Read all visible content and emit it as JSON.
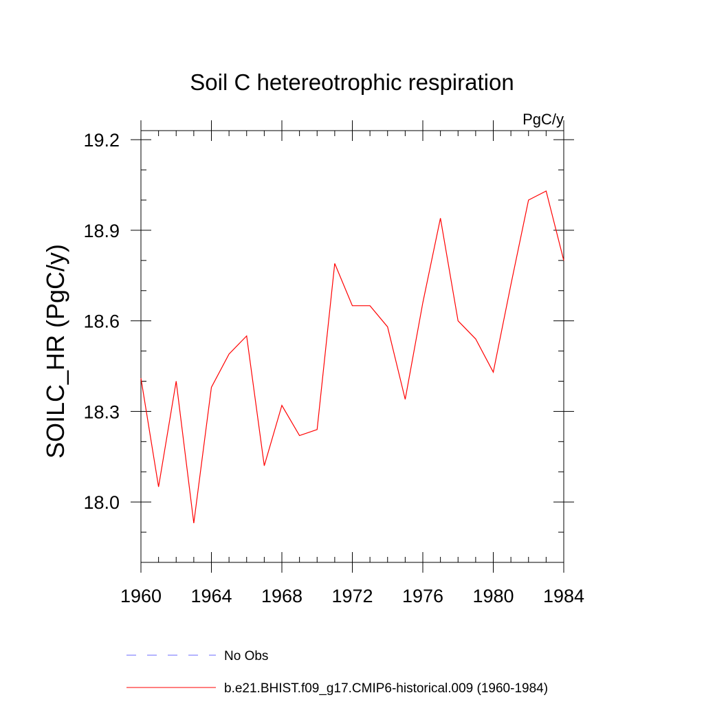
{
  "chart_data": {
    "type": "line",
    "title": "Soil C hetereotrophic respiration",
    "units_label": "PgC/y",
    "xlabel": "",
    "ylabel": "SOILC_HR  (PgC/y)",
    "xlim": [
      1960,
      1984
    ],
    "ylim": [
      17.8,
      19.23
    ],
    "x_ticks": [
      1960,
      1964,
      1968,
      1972,
      1976,
      1980,
      1984
    ],
    "x_tick_labels": [
      "1960",
      "1964",
      "1968",
      "1972",
      "1976",
      "1980",
      "1984"
    ],
    "x_minor_step": 1,
    "y_ticks": [
      18.0,
      18.3,
      18.6,
      18.9,
      19.2
    ],
    "y_tick_labels": [
      "18.0",
      "18.3",
      "18.6",
      "18.9",
      "19.2"
    ],
    "y_minor_step": 0.1,
    "grid": false,
    "legend_position": "bottom",
    "series": [
      {
        "name": "b.e21.BHIST.f09_g17.CMIP6-historical.009 (1960-1984)",
        "color": "#ff0000",
        "dash": "solid",
        "x": [
          1960,
          1961,
          1962,
          1963,
          1964,
          1965,
          1966,
          1967,
          1968,
          1969,
          1970,
          1971,
          1972,
          1973,
          1974,
          1975,
          1976,
          1977,
          1978,
          1979,
          1980,
          1981,
          1982,
          1983,
          1984
        ],
        "y": [
          18.41,
          18.05,
          18.4,
          17.93,
          18.38,
          18.49,
          18.55,
          18.12,
          18.32,
          18.22,
          18.24,
          18.79,
          18.65,
          18.65,
          18.58,
          18.34,
          18.66,
          18.94,
          18.6,
          18.54,
          18.43,
          18.72,
          19.0,
          19.03,
          18.8
        ]
      }
    ],
    "legend": [
      {
        "label": "No Obs",
        "color": "#6a6aff",
        "dash": "dashed"
      },
      {
        "label": "b.e21.BHIST.f09_g17.CMIP6-historical.009 (1960-1984)",
        "color": "#ff0000",
        "dash": "solid"
      }
    ]
  }
}
